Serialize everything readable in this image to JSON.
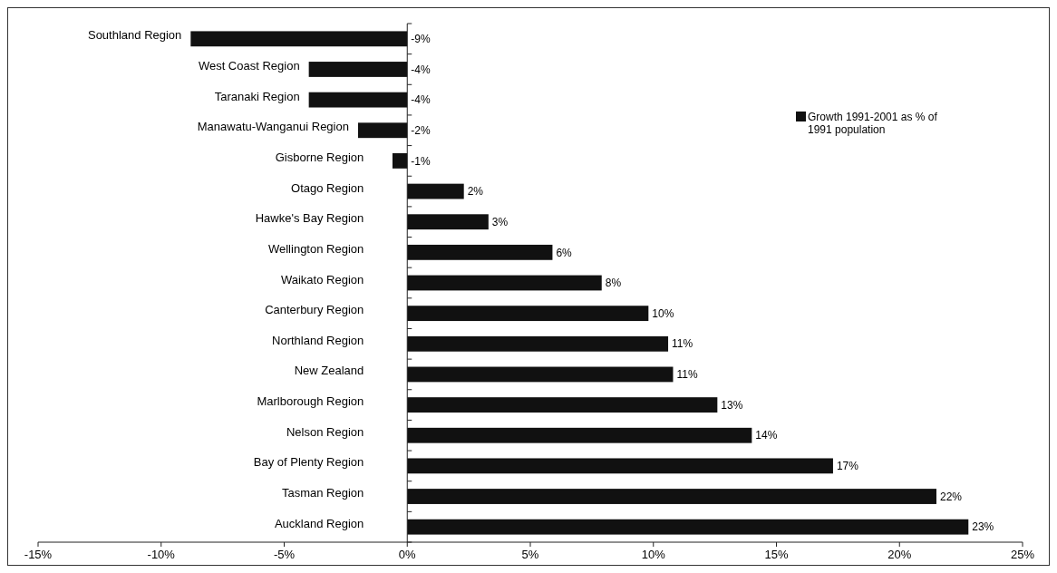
{
  "chart_data": {
    "type": "bar",
    "orientation": "horizontal",
    "categories": [
      "Southland Region",
      "West Coast Region",
      "Taranaki Region",
      "Manawatu-Wanganui Region",
      "Gisborne Region",
      "Otago Region",
      "Hawke's Bay Region",
      "Wellington Region",
      "Waikato Region",
      "Canterbury Region",
      "Northland Region",
      "New Zealand",
      "Marlborough Region",
      "Nelson Region",
      "Bay of Plenty Region",
      "Tasman Region",
      "Auckland Region"
    ],
    "series": [
      {
        "name": "Growth 1991-2001 as % of 1991 population",
        "color": "#111111",
        "values": [
          -8.8,
          -4.0,
          -4.0,
          -2.0,
          -0.6,
          2.3,
          3.3,
          5.9,
          7.9,
          9.8,
          10.6,
          10.8,
          12.6,
          14.0,
          17.3,
          21.5,
          22.8
        ],
        "value_labels": [
          "-9%",
          "-4%",
          "-4%",
          "-2%",
          "-1%",
          "2%",
          "3%",
          "6%",
          "8%",
          "10%",
          "11%",
          "11%",
          "13%",
          "14%",
          "17%",
          "22%",
          "23%"
        ]
      }
    ],
    "xlim": [
      -15,
      25
    ],
    "xticks": [
      {
        "value": -15,
        "label": "-15%"
      },
      {
        "value": -10,
        "label": "-10%"
      },
      {
        "value": -5,
        "label": "-5%"
      },
      {
        "value": 0,
        "label": "0%"
      },
      {
        "value": 5,
        "label": "5%"
      },
      {
        "value": 10,
        "label": "10%"
      },
      {
        "value": 15,
        "label": "15%"
      },
      {
        "value": 20,
        "label": "20%"
      },
      {
        "value": 25,
        "label": "25%"
      }
    ],
    "legend": "top right"
  }
}
